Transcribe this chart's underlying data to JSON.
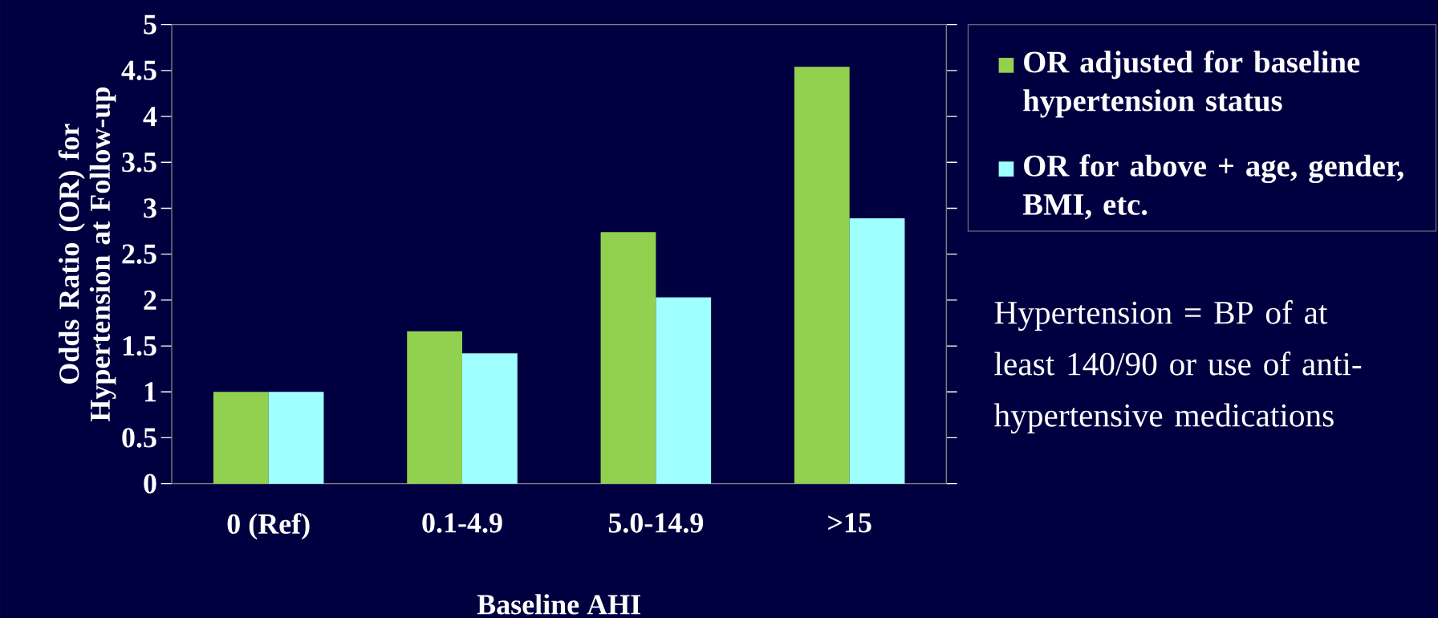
{
  "chart_data": {
    "type": "bar",
    "xlabel": "Baseline AHI",
    "ylabel": "Odds Ratio (OR) for Hypertension at Follow-up",
    "categories": [
      "0 (Ref)",
      "0.1-4.9",
      "5.0-14.9",
      ">15"
    ],
    "series": [
      {
        "name": "OR adjusted for baseline hypertension status",
        "color": "#92d050",
        "values": [
          1.0,
          1.66,
          2.74,
          4.54
        ]
      },
      {
        "name": "OR for above + age, gender, BMI, etc.",
        "color": "#a0ffff",
        "values": [
          1.0,
          1.42,
          2.03,
          2.89
        ]
      }
    ],
    "ylim": [
      0,
      5
    ],
    "yticks": [
      0,
      0.5,
      1,
      1.5,
      2,
      2.5,
      3,
      3.5,
      4,
      4.5,
      5
    ],
    "legend": "top right",
    "annotations": [
      "Hypertension = BP of at least 140/90 or use of anti-hypertensive medications"
    ]
  }
}
